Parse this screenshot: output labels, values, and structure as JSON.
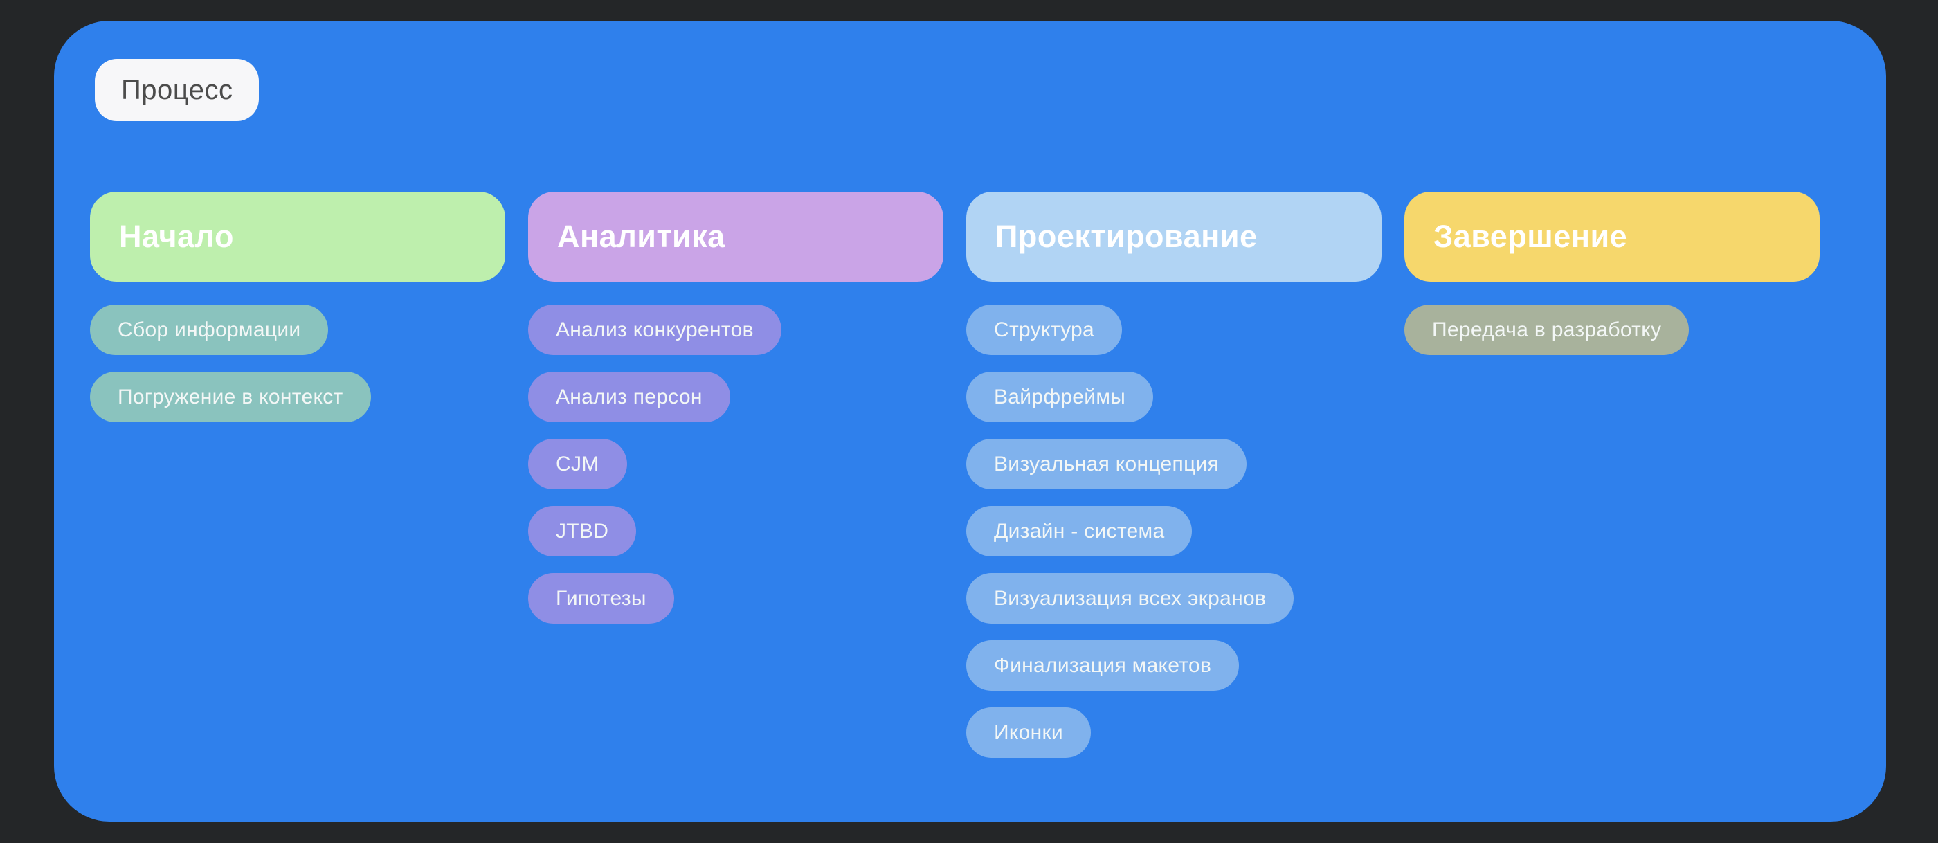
{
  "page": {
    "background": "#242628",
    "board_color": "#2F80EC"
  },
  "badge": {
    "label": "Процесс",
    "bg": "#F7F7F9",
    "text_color": "#4C4C4C"
  },
  "columns": [
    {
      "id": "nachalo",
      "title": "Начало",
      "header_color": "#BEEFAD",
      "item_color": "#8AC3BE",
      "items": [
        "Сбор информации",
        "Погружение в контекст"
      ]
    },
    {
      "id": "analitika",
      "title": "Аналитика",
      "header_color": "#CAA4E7",
      "item_color": "#8F8EE5",
      "items": [
        "Анализ конкурентов",
        "Анализ персон",
        "CJM",
        "JTBD",
        "Гипотезы"
      ]
    },
    {
      "id": "proektirovanie",
      "title": "Проектирование",
      "header_color": "#B1D4F4",
      "item_color": "#80B2ED",
      "items": [
        "Структура",
        "Вайрфреймы",
        "Визуальная концепция",
        "Дизайн - система",
        "Визуализация всех экранов",
        "Финализация макетов",
        "Иконки"
      ]
    },
    {
      "id": "zavershenie",
      "title": "Завершение",
      "header_color": "#F6D76C",
      "item_color": "#A8B29C",
      "items": [
        "Передача в разработку"
      ]
    }
  ]
}
